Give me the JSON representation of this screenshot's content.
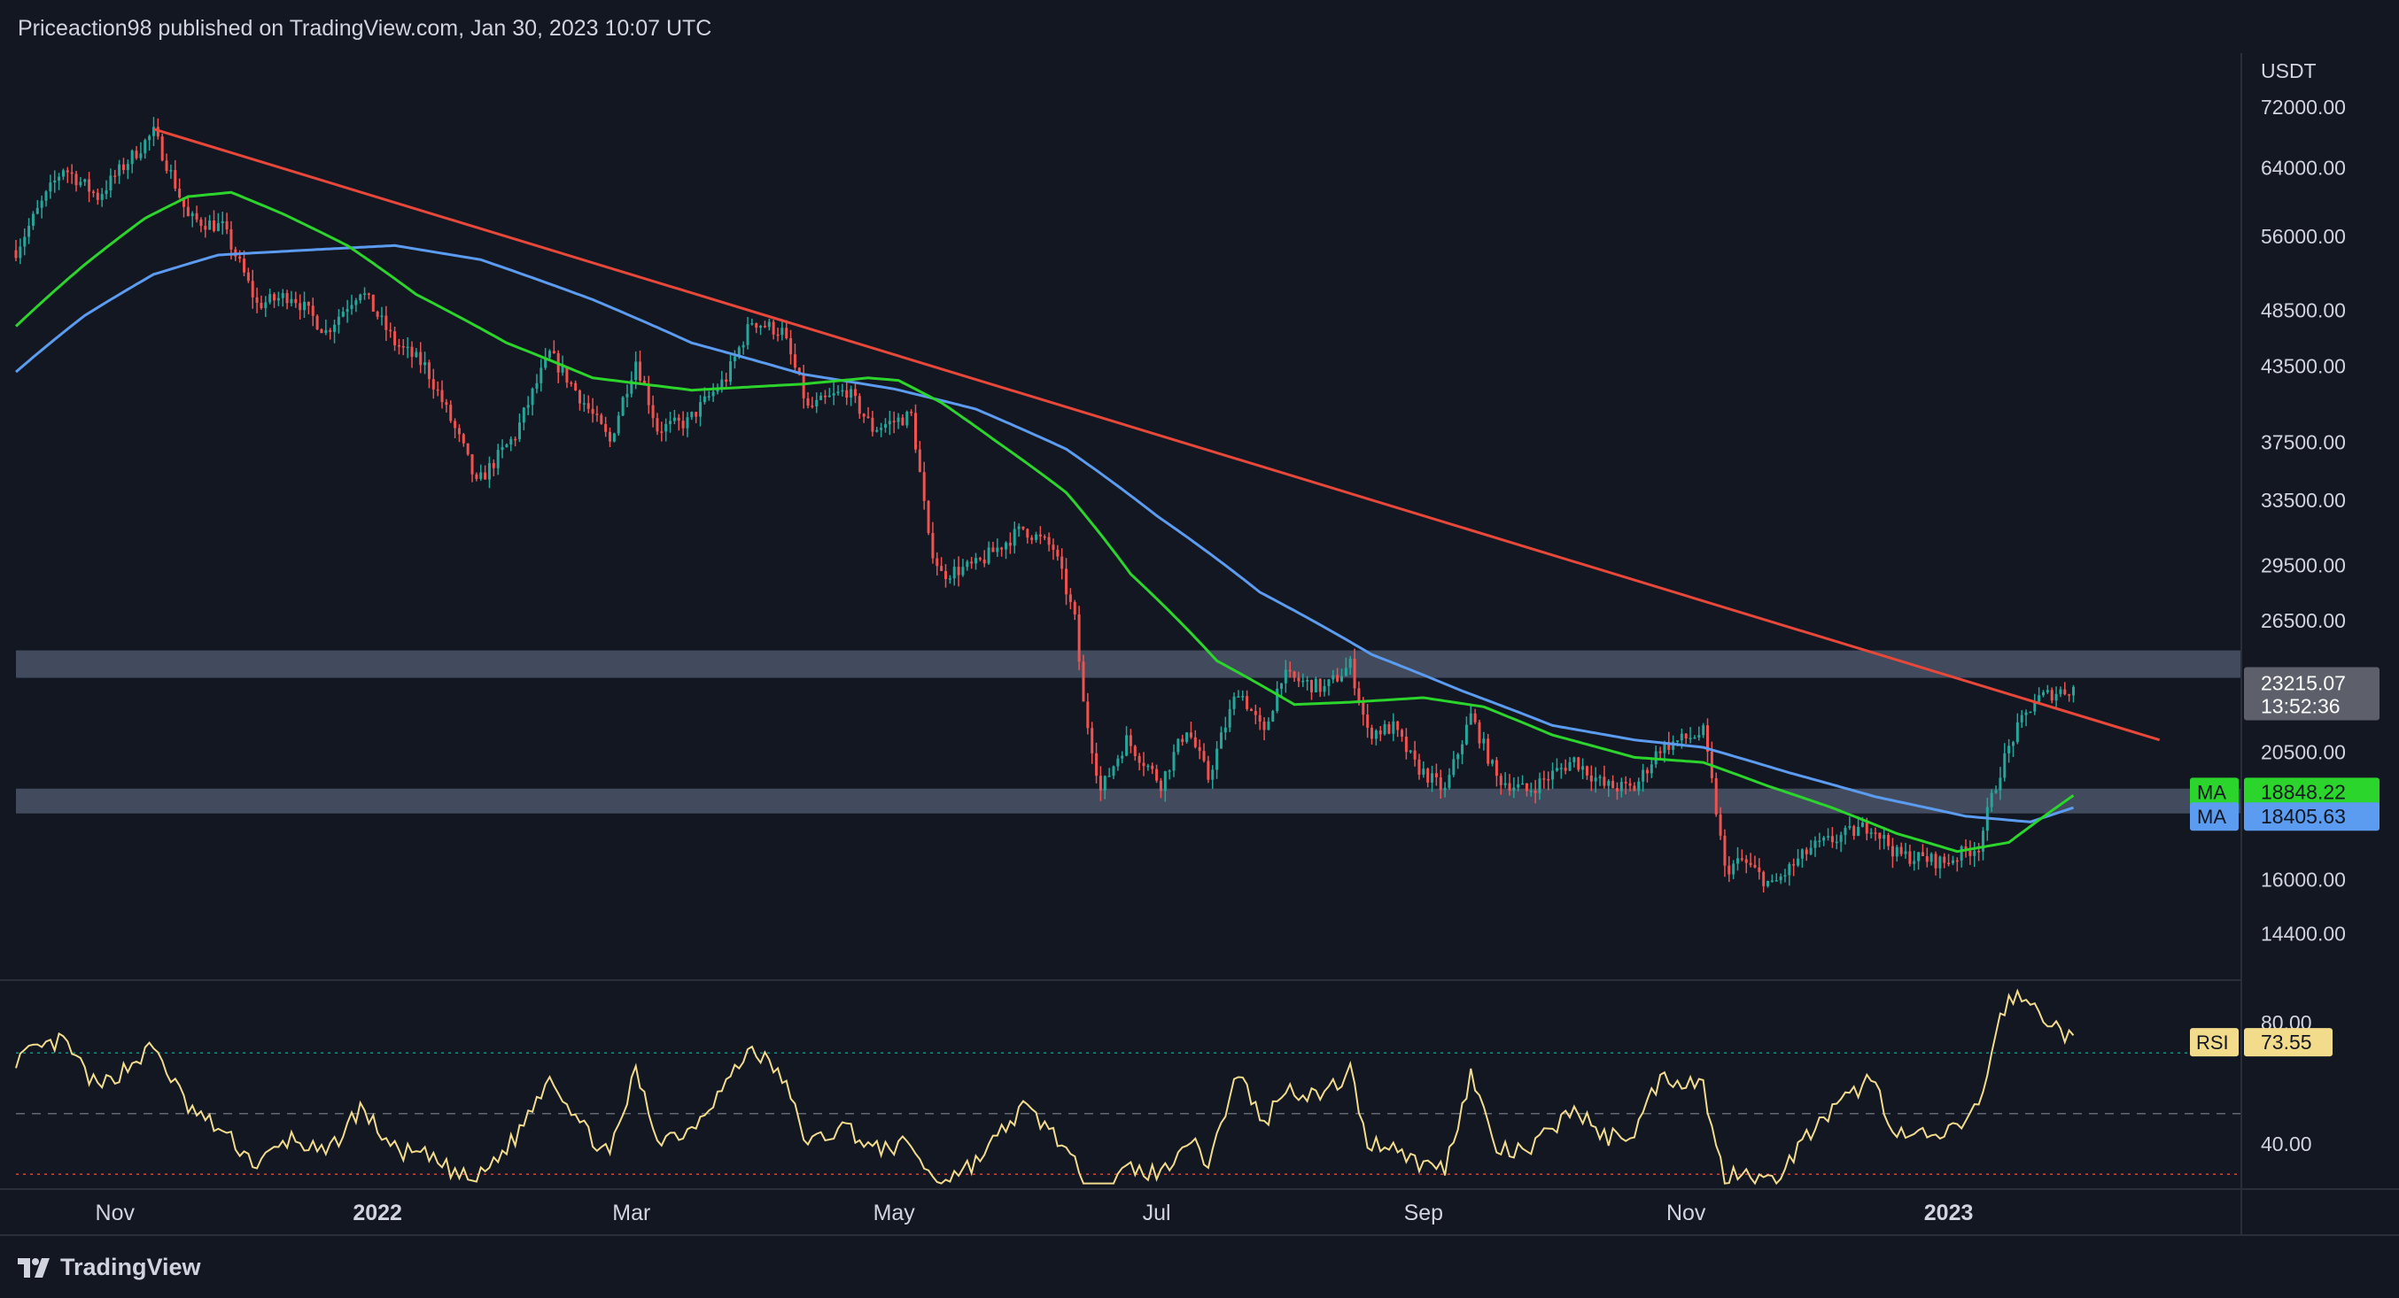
{
  "header": {
    "text": "Priceaction98 published on TradingView.com, Jan 30, 2023 10:07 UTC"
  },
  "footer": {
    "brand": "TradingView"
  },
  "colors": {
    "background": "#131722",
    "up": "#26a69a",
    "down": "#ef5350",
    "ma_green": "#2cd52c",
    "ma_blue": "#5b9cf0",
    "trendline": "#e8483a",
    "zone": "#4a5567",
    "rsi": "#f2dc8c"
  },
  "chart_data": [
    {
      "type": "candlestick",
      "symbol_currency": "USDT",
      "scale": "log",
      "ylim": [
        13200,
        80000
      ],
      "y_ticks": [
        "72000.00",
        "64000.00",
        "56000.00",
        "48500.00",
        "43500.00",
        "37500.00",
        "33500.00",
        "29500.00",
        "26500.00",
        "20500.00",
        "16000.00",
        "14400.00"
      ],
      "x_ticks": [
        "Nov",
        "2022",
        "Mar",
        "May",
        "Jul",
        "Sep",
        "Nov",
        "2023"
      ],
      "x_tick_dates": [
        "2021-11-01",
        "2022-01-01",
        "2022-03-01",
        "2022-05-01",
        "2022-07-01",
        "2022-09-01",
        "2022-11-01",
        "2023-01-01"
      ],
      "x_range": [
        "2021-10-09",
        "2023-03-10"
      ],
      "last_price": {
        "value": 23215.07,
        "label": "23215.07",
        "countdown": "13:52:36"
      },
      "moving_averages": [
        {
          "label": "MA",
          "value_text": "18848.22",
          "color": "#2cd52c"
        },
        {
          "label": "MA",
          "value_text": "18405.63",
          "color": "#5b9cf0"
        }
      ],
      "zones": [
        {
          "low": 23700,
          "high": 25000
        },
        {
          "low": 18200,
          "high": 19100
        }
      ],
      "trendline": {
        "start": {
          "date": "2021-11-10",
          "price": 69000
        },
        "end": {
          "date": "2023-02-19",
          "price": 21000
        }
      },
      "price_anchors": [
        [
          "2021-10-09",
          54500
        ],
        [
          "2021-10-20",
          64000
        ],
        [
          "2021-10-28",
          60500
        ],
        [
          "2021-11-10",
          68500
        ],
        [
          "2021-11-18",
          58000
        ],
        [
          "2021-11-26",
          57000
        ],
        [
          "2021-12-04",
          49000
        ],
        [
          "2021-12-12",
          50000
        ],
        [
          "2021-12-20",
          46500
        ],
        [
          "2021-12-28",
          50500
        ],
        [
          "2022-01-05",
          45500
        ],
        [
          "2022-01-12",
          43500
        ],
        [
          "2022-01-21",
          37000
        ],
        [
          "2022-01-24",
          34500
        ],
        [
          "2022-02-02",
          38000
        ],
        [
          "2022-02-10",
          44500
        ],
        [
          "2022-02-18",
          40500
        ],
        [
          "2022-02-24",
          37500
        ],
        [
          "2022-03-02",
          44000
        ],
        [
          "2022-03-07",
          38500
        ],
        [
          "2022-03-14",
          39000
        ],
        [
          "2022-03-23",
          42500
        ],
        [
          "2022-03-29",
          47500
        ],
        [
          "2022-04-05",
          46500
        ],
        [
          "2022-04-11",
          40000
        ],
        [
          "2022-04-20",
          41500
        ],
        [
          "2022-04-26",
          38500
        ],
        [
          "2022-05-05",
          39500
        ],
        [
          "2022-05-09",
          31000
        ],
        [
          "2022-05-12",
          29000
        ],
        [
          "2022-05-20",
          29500
        ],
        [
          "2022-05-31",
          31700
        ],
        [
          "2022-06-07",
          30500
        ],
        [
          "2022-06-12",
          26500
        ],
        [
          "2022-06-14",
          22500
        ],
        [
          "2022-06-18",
          19000
        ],
        [
          "2022-06-24",
          21000
        ],
        [
          "2022-07-02",
          19300
        ],
        [
          "2022-07-08",
          21500
        ],
        [
          "2022-07-13",
          19500
        ],
        [
          "2022-07-20",
          23200
        ],
        [
          "2022-07-26",
          21200
        ],
        [
          "2022-07-30",
          23800
        ],
        [
          "2022-08-09",
          23200
        ],
        [
          "2022-08-15",
          24300
        ],
        [
          "2022-08-19",
          21300
        ],
        [
          "2022-08-25",
          21500
        ],
        [
          "2022-08-30",
          20000
        ],
        [
          "2022-09-06",
          19000
        ],
        [
          "2022-09-12",
          22000
        ],
        [
          "2022-09-18",
          19500
        ],
        [
          "2022-09-25",
          19000
        ],
        [
          "2022-10-06",
          20200
        ],
        [
          "2022-10-13",
          19200
        ],
        [
          "2022-10-20",
          19100
        ],
        [
          "2022-10-26",
          20700
        ],
        [
          "2022-11-05",
          21300
        ],
        [
          "2022-11-08",
          18300
        ],
        [
          "2022-11-10",
          16300
        ],
        [
          "2022-11-14",
          16600
        ],
        [
          "2022-11-21",
          15800
        ],
        [
          "2022-11-30",
          17000
        ],
        [
          "2022-12-14",
          17800
        ],
        [
          "2022-12-20",
          16800
        ],
        [
          "2022-12-31",
          16550
        ],
        [
          "2023-01-08",
          17100
        ],
        [
          "2023-01-13",
          19800
        ],
        [
          "2023-01-16",
          21100
        ],
        [
          "2023-01-21",
          22700
        ],
        [
          "2023-01-25",
          23000
        ],
        [
          "2023-01-30",
          23215
        ]
      ],
      "ma_green_anchors": [
        [
          "2021-10-09",
          47000
        ],
        [
          "2021-10-25",
          53000
        ],
        [
          "2021-11-08",
          58000
        ],
        [
          "2021-11-18",
          60500
        ],
        [
          "2021-11-28",
          61000
        ],
        [
          "2021-12-10",
          58500
        ],
        [
          "2021-12-25",
          55000
        ],
        [
          "2022-01-10",
          50000
        ],
        [
          "2022-01-31",
          45500
        ],
        [
          "2022-02-20",
          42500
        ],
        [
          "2022-03-15",
          41500
        ],
        [
          "2022-04-10",
          42000
        ],
        [
          "2022-04-25",
          42500
        ],
        [
          "2022-05-02",
          42300
        ],
        [
          "2022-05-12",
          40500
        ],
        [
          "2022-05-25",
          37500
        ],
        [
          "2022-06-10",
          34000
        ],
        [
          "2022-06-25",
          29000
        ],
        [
          "2022-07-15",
          24500
        ],
        [
          "2022-08-02",
          22500
        ],
        [
          "2022-08-15",
          22600
        ],
        [
          "2022-09-01",
          22800
        ],
        [
          "2022-09-15",
          22400
        ],
        [
          "2022-10-01",
          21200
        ],
        [
          "2022-10-20",
          20300
        ],
        [
          "2022-11-05",
          20100
        ],
        [
          "2022-11-20",
          19200
        ],
        [
          "2022-12-05",
          18400
        ],
        [
          "2022-12-20",
          17500
        ],
        [
          "2023-01-03",
          16900
        ],
        [
          "2023-01-15",
          17200
        ],
        [
          "2023-01-30",
          18848
        ]
      ],
      "ma_blue_anchors": [
        [
          "2021-10-09",
          43000
        ],
        [
          "2021-10-25",
          48000
        ],
        [
          "2021-11-10",
          52000
        ],
        [
          "2021-11-25",
          54000
        ],
        [
          "2021-12-15",
          54500
        ],
        [
          "2022-01-05",
          55000
        ],
        [
          "2022-01-25",
          53500
        ],
        [
          "2022-02-20",
          49500
        ],
        [
          "2022-03-15",
          45500
        ],
        [
          "2022-04-10",
          42800
        ],
        [
          "2022-05-01",
          41600
        ],
        [
          "2022-05-20",
          40000
        ],
        [
          "2022-06-10",
          37000
        ],
        [
          "2022-07-01",
          32500
        ],
        [
          "2022-07-25",
          28000
        ],
        [
          "2022-08-20",
          24800
        ],
        [
          "2022-09-10",
          23100
        ],
        [
          "2022-10-01",
          21600
        ],
        [
          "2022-10-20",
          21000
        ],
        [
          "2022-11-05",
          20700
        ],
        [
          "2022-11-25",
          19700
        ],
        [
          "2022-12-15",
          18800
        ],
        [
          "2023-01-05",
          18100
        ],
        [
          "2023-01-20",
          17900
        ],
        [
          "2023-01-30",
          18405
        ]
      ],
      "rsi": {
        "label": "RSI",
        "value_text": "73.55",
        "ylim": [
          26,
          94
        ],
        "y_ticks": [
          "80.00",
          "40.00"
        ],
        "levels": [
          70,
          50,
          30
        ],
        "anchors": [
          [
            "2021-10-09",
            68
          ],
          [
            "2021-10-20",
            74
          ],
          [
            "2021-10-28",
            58
          ],
          [
            "2021-11-10",
            72
          ],
          [
            "2021-11-18",
            52
          ],
          [
            "2021-11-26",
            44
          ],
          [
            "2021-12-04",
            33
          ],
          [
            "2021-12-12",
            42
          ],
          [
            "2021-12-20",
            36
          ],
          [
            "2021-12-28",
            52
          ],
          [
            "2022-01-05",
            38
          ],
          [
            "2022-01-12",
            36
          ],
          [
            "2022-01-21",
            29
          ],
          [
            "2022-01-24",
            28
          ],
          [
            "2022-02-02",
            42
          ],
          [
            "2022-02-10",
            63
          ],
          [
            "2022-02-18",
            45
          ],
          [
            "2022-02-24",
            36
          ],
          [
            "2022-03-02",
            64
          ],
          [
            "2022-03-07",
            42
          ],
          [
            "2022-03-14",
            44
          ],
          [
            "2022-03-23",
            60
          ],
          [
            "2022-03-29",
            72
          ],
          [
            "2022-04-05",
            62
          ],
          [
            "2022-04-11",
            40
          ],
          [
            "2022-04-20",
            46
          ],
          [
            "2022-04-26",
            38
          ],
          [
            "2022-05-05",
            40
          ],
          [
            "2022-05-09",
            30
          ],
          [
            "2022-05-12",
            28
          ],
          [
            "2022-05-20",
            34
          ],
          [
            "2022-05-31",
            52
          ],
          [
            "2022-06-07",
            44
          ],
          [
            "2022-06-12",
            33
          ],
          [
            "2022-06-14",
            22
          ],
          [
            "2022-06-18",
            20
          ],
          [
            "2022-06-24",
            32
          ],
          [
            "2022-07-02",
            30
          ],
          [
            "2022-07-08",
            42
          ],
          [
            "2022-07-13",
            34
          ],
          [
            "2022-07-20",
            64
          ],
          [
            "2022-07-26",
            46
          ],
          [
            "2022-07-30",
            58
          ],
          [
            "2022-08-09",
            56
          ],
          [
            "2022-08-15",
            64
          ],
          [
            "2022-08-19",
            40
          ],
          [
            "2022-08-25",
            40
          ],
          [
            "2022-08-30",
            34
          ],
          [
            "2022-09-06",
            32
          ],
          [
            "2022-09-12",
            63
          ],
          [
            "2022-09-18",
            38
          ],
          [
            "2022-09-25",
            37
          ],
          [
            "2022-10-06",
            52
          ],
          [
            "2022-10-13",
            42
          ],
          [
            "2022-10-20",
            44
          ],
          [
            "2022-10-26",
            62
          ],
          [
            "2022-11-05",
            60
          ],
          [
            "2022-11-08",
            38
          ],
          [
            "2022-11-10",
            29
          ],
          [
            "2022-11-14",
            32
          ],
          [
            "2022-11-21",
            27
          ],
          [
            "2022-11-30",
            44
          ],
          [
            "2022-12-14",
            62
          ],
          [
            "2022-12-20",
            43
          ],
          [
            "2022-12-31",
            42
          ],
          [
            "2023-01-08",
            52
          ],
          [
            "2023-01-13",
            82
          ],
          [
            "2023-01-16",
            89
          ],
          [
            "2023-01-21",
            85
          ],
          [
            "2023-01-25",
            80
          ],
          [
            "2023-01-30",
            73.55
          ]
        ]
      }
    }
  ]
}
